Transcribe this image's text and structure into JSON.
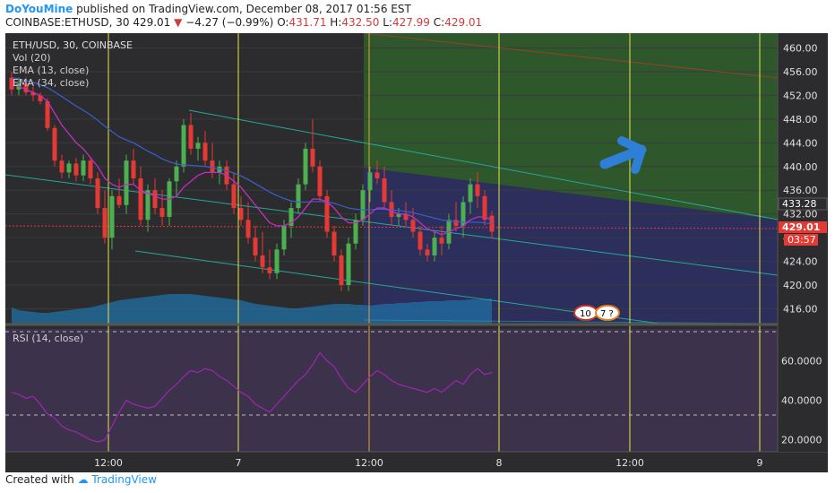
{
  "header": {
    "author": "DoYouMine",
    "published_text": "published on TradingView.com, December 08, 2017 01:56 EST",
    "ticker_line": "COINBASE:ETHUSD, 30",
    "last_price": "429.01",
    "change_arrow": "▼",
    "change": "−4.27 (−0.99%)",
    "o_label": "O:",
    "o_value": "431.71",
    "h_label": "H:",
    "h_value": "432.50",
    "l_label": "L:",
    "l_value": "427.99",
    "c_label": "C:",
    "c_value": "429.01"
  },
  "legend": {
    "symbol": "ETH/USD, 30, COINBASE",
    "vol": "Vol (20)",
    "ema_fast": "EMA (13, close)",
    "ema_slow": "EMA (34, close)",
    "rsi": "RSI (14, close)"
  },
  "badges": {
    "current_price": "429.01",
    "countdown": "03:57",
    "level": "433.28",
    "event1": "10",
    "event2": "7 ?"
  },
  "footer": {
    "created_with": "Created with",
    "brand": "TradingView"
  },
  "colors": {
    "bg": "#2c2c2f",
    "up": "#4caf50",
    "down": "#e53935",
    "ema_fast": "#c030c0",
    "ema_slow": "#3a5fcd",
    "channel": "#26a69a",
    "green_zone": "#2e5a2c",
    "blue_zone": "#2d2f63",
    "rsi_zone": "#3f3450",
    "rsi_line": "#9c27b0",
    "arrow": "#2f7fd6",
    "vline": "#e6e64a",
    "price_badge": "#e53935"
  },
  "chart_data": [
    {
      "type": "candlestick",
      "title": "ETH/USD, 30, COINBASE",
      "y_ticks": [
        460,
        456,
        452,
        448,
        444,
        440,
        436,
        432,
        428,
        424,
        420,
        416
      ],
      "y_tick_labels": [
        "460.00",
        "456.00",
        "452.00",
        "448.00",
        "444.00",
        "440.00",
        "436.00",
        "432.00",
        "428.00",
        "424.00",
        "420.00",
        "416.00"
      ],
      "ylim": [
        413.5,
        462.5
      ],
      "x_tick_labels": [
        "12:00",
        "7",
        "12:00",
        "8",
        "12:00",
        "9"
      ],
      "candles": [
        [
          455,
          456,
          452,
          453
        ],
        [
          453,
          455,
          452,
          454
        ],
        [
          454,
          455,
          452,
          452.5
        ],
        [
          452.5,
          453.5,
          451,
          452
        ],
        [
          452,
          452.5,
          450.5,
          451
        ],
        [
          451,
          451.5,
          446,
          446.5
        ],
        [
          446.5,
          447,
          440,
          441
        ],
        [
          441,
          442,
          438,
          439
        ],
        [
          439,
          441,
          438,
          440.5
        ],
        [
          440.5,
          441.5,
          437.5,
          438.5
        ],
        [
          438.5,
          442,
          437.5,
          441
        ],
        [
          441,
          441.5,
          437,
          438
        ],
        [
          438,
          439,
          432,
          433
        ],
        [
          433,
          436,
          427,
          428
        ],
        [
          428,
          436,
          426,
          435
        ],
        [
          435,
          438,
          433,
          433.5
        ],
        [
          433.5,
          442,
          432,
          441
        ],
        [
          441,
          443,
          437,
          438
        ],
        [
          438,
          440,
          430,
          431
        ],
        [
          431,
          437,
          429,
          436
        ],
        [
          436,
          438,
          432,
          433
        ],
        [
          433,
          436,
          430,
          431.5
        ],
        [
          431.5,
          438,
          430,
          437.5
        ],
        [
          437.5,
          441,
          435,
          440
        ],
        [
          440,
          448,
          439,
          447
        ],
        [
          447,
          449,
          442,
          443
        ],
        [
          443,
          445,
          441,
          444
        ],
        [
          444,
          446,
          440,
          441
        ],
        [
          441,
          444,
          438,
          439
        ],
        [
          439,
          441,
          437,
          440
        ],
        [
          440,
          441,
          436,
          437
        ],
        [
          437,
          439,
          432,
          433
        ],
        [
          433,
          435,
          430,
          431
        ],
        [
          431,
          434,
          427,
          428
        ],
        [
          428,
          430,
          424,
          425
        ],
        [
          425,
          429,
          422,
          423
        ],
        [
          423,
          426,
          421,
          422
        ],
        [
          422,
          427,
          421,
          426
        ],
        [
          426,
          431,
          425,
          430
        ],
        [
          430,
          434,
          428,
          433
        ],
        [
          433,
          438,
          432,
          437
        ],
        [
          437,
          444,
          436,
          443
        ],
        [
          443,
          448,
          439,
          440
        ],
        [
          440,
          441,
          434,
          435
        ],
        [
          435,
          436,
          428,
          429
        ],
        [
          429,
          430,
          424,
          425
        ],
        [
          425,
          426,
          419,
          420
        ],
        [
          420,
          428,
          419,
          427
        ],
        [
          427,
          432,
          426,
          431
        ],
        [
          431,
          437,
          430,
          436
        ],
        [
          436,
          440,
          434,
          439
        ],
        [
          439,
          441,
          437,
          438
        ],
        [
          438,
          440,
          433,
          434
        ],
        [
          434,
          436,
          430,
          431.5
        ],
        [
          431.5,
          433,
          430,
          432
        ],
        [
          432,
          434,
          430,
          431
        ],
        [
          431,
          433,
          428,
          429
        ],
        [
          429,
          430,
          425,
          426
        ],
        [
          426,
          427,
          424,
          425
        ],
        [
          425,
          429,
          424,
          428
        ],
        [
          428,
          430,
          425,
          427
        ],
        [
          427,
          432,
          426,
          431
        ],
        [
          431,
          434,
          429,
          430
        ],
        [
          430,
          435,
          428,
          434
        ],
        [
          434,
          438,
          432,
          437
        ],
        [
          437,
          439,
          433,
          435
        ],
        [
          435,
          436,
          430,
          431
        ],
        [
          431.71,
          432.5,
          427.99,
          429.01
        ]
      ],
      "ema13": [
        454,
        453.5,
        453,
        452.5,
        452,
        451,
        449,
        447,
        445.5,
        444,
        443,
        441.5,
        440,
        438,
        437,
        436.5,
        437,
        437,
        436,
        435.5,
        435,
        434.5,
        434.5,
        435,
        436.5,
        437.5,
        438.5,
        439,
        439,
        439,
        438.5,
        437.5,
        436.5,
        435,
        433.5,
        432,
        430.5,
        430,
        430,
        430.5,
        431.5,
        433,
        434.5,
        434.5,
        434,
        433,
        431.5,
        430.5,
        430.5,
        431,
        432,
        433,
        433,
        432.5,
        432,
        432,
        431.5,
        430.5,
        429.5,
        429,
        428.5,
        429,
        429.5,
        430,
        431,
        431.5,
        431.5,
        431
      ],
      "ema34": [
        455,
        454.8,
        454.5,
        454.2,
        453.8,
        453.3,
        452.6,
        451.8,
        451,
        450.2,
        449.5,
        448.7,
        447.8,
        446.8,
        445.9,
        445,
        444.5,
        444,
        443.3,
        442.6,
        442,
        441.3,
        440.8,
        440.4,
        440.3,
        440.2,
        440.1,
        440,
        439.8,
        439.6,
        439.3,
        438.9,
        438.4,
        437.8,
        437.1,
        436.4,
        435.7,
        435.1,
        434.6,
        434.2,
        434,
        434,
        434.1,
        434.1,
        434,
        433.8,
        433.4,
        433,
        432.8,
        432.7,
        432.7,
        432.8,
        432.8,
        432.7,
        432.6,
        432.4,
        432.2,
        431.9,
        431.6,
        431.3,
        431,
        430.8,
        430.7,
        430.6,
        430.6,
        430.6,
        430.5,
        430.3
      ],
      "volume_area": [
        18,
        15,
        14,
        13,
        12,
        12,
        13,
        14,
        15,
        16,
        17,
        18,
        20,
        22,
        24,
        26,
        27,
        28,
        29,
        30,
        31,
        32,
        33,
        33,
        33,
        33,
        32,
        31,
        30,
        29,
        28,
        27,
        26,
        24,
        22,
        21,
        20,
        19,
        18,
        17,
        17,
        18,
        19,
        20,
        21,
        22,
        22,
        22,
        21,
        21,
        20,
        21,
        22,
        22,
        23,
        23,
        24,
        24,
        25,
        25,
        25,
        26,
        26,
        26,
        27,
        27,
        27,
        28
      ]
    },
    {
      "type": "line",
      "title": "RSI (14, close)",
      "y_ticks": [
        60,
        40,
        20
      ],
      "y_tick_labels": [
        "60.0000",
        "40.0000",
        "20.0000"
      ],
      "ylim": [
        14,
        76
      ],
      "bands": [
        70,
        30
      ],
      "series": [
        {
          "values": [
            44,
            43,
            41,
            42,
            38,
            33,
            31,
            27,
            25,
            24,
            22,
            20,
            19,
            20,
            27,
            34,
            40,
            38,
            37,
            36,
            37,
            41,
            45,
            48,
            52,
            55,
            54,
            56,
            55,
            52,
            50,
            47,
            44,
            42,
            38,
            36,
            34,
            38,
            42,
            46,
            50,
            53,
            58,
            64,
            60,
            57,
            51,
            46,
            44,
            48,
            52,
            55,
            53,
            50,
            48,
            47,
            46,
            45,
            44,
            46,
            44,
            47,
            50,
            48,
            53,
            56,
            53,
            54
          ]
        }
      ]
    }
  ]
}
